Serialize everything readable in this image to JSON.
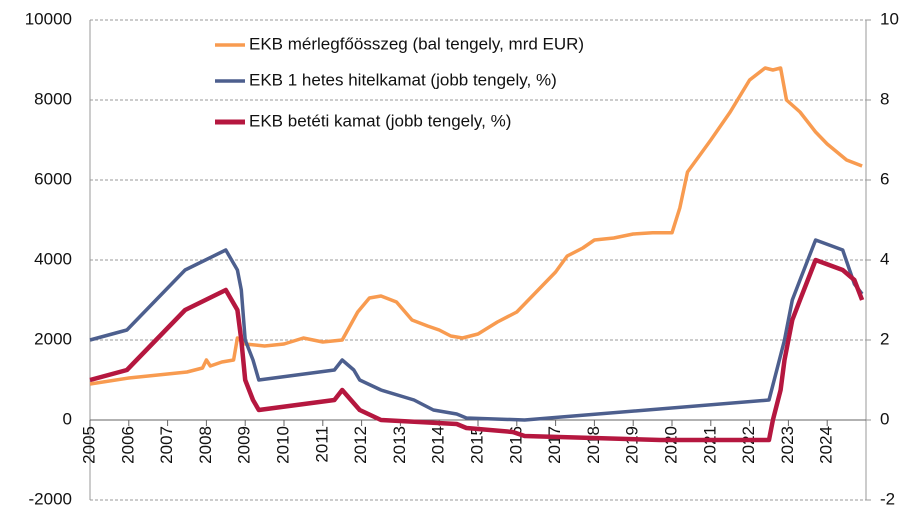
{
  "chart_data": {
    "type": "line",
    "xlim": [
      2005,
      2025
    ],
    "xticks": [
      2005,
      2006,
      2007,
      2008,
      2009,
      2010,
      2011,
      2012,
      2013,
      2014,
      2015,
      2016,
      2017,
      2018,
      2019,
      2020,
      2021,
      2022,
      2023,
      2024
    ],
    "ylim": [
      -2000,
      10000
    ],
    "yticks": [
      -2000,
      0,
      2000,
      4000,
      6000,
      8000,
      10000
    ],
    "y2lim": [
      -2,
      10
    ],
    "y2ticks": [
      -2,
      0,
      2,
      4,
      6,
      8,
      10
    ],
    "grid": true,
    "legend": "top",
    "series": [
      {
        "name": "EKB mérlegfőösszeg (bal tengely, mrd EUR)",
        "color": "#f89b50",
        "axis": "y",
        "x": [
          2005,
          2006,
          2007,
          2007.5,
          2007.9,
          2008,
          2008.1,
          2008.4,
          2008.7,
          2008.8,
          2009,
          2009.5,
          2010,
          2010.5,
          2011,
          2011.5,
          2011.9,
          2012.2,
          2012.5,
          2012.9,
          2013.3,
          2013.7,
          2014,
          2014.3,
          2014.6,
          2015,
          2015.5,
          2016,
          2016.5,
          2017,
          2017.3,
          2017.7,
          2018,
          2018.5,
          2019,
          2019.5,
          2020,
          2020.2,
          2020.4,
          2020.7,
          2021,
          2021.5,
          2022,
          2022.4,
          2022.6,
          2022.8,
          2022.95,
          2023.3,
          2023.7,
          2024,
          2024.5,
          2024.9
        ],
        "values": [
          900,
          1050,
          1150,
          1200,
          1300,
          1500,
          1350,
          1450,
          1500,
          2050,
          1900,
          1850,
          1900,
          2050,
          1950,
          2000,
          2700,
          3050,
          3100,
          2950,
          2500,
          2350,
          2250,
          2100,
          2050,
          2150,
          2450,
          2700,
          3200,
          3700,
          4100,
          4300,
          4500,
          4550,
          4650,
          4680,
          4680,
          5300,
          6200,
          6600,
          7000,
          7700,
          8500,
          8800,
          8750,
          8800,
          8000,
          7700,
          7200,
          6900,
          6500,
          6350
        ]
      },
      {
        "name": "EKB 1 hetes hitelkamat (jobb tengely, %)",
        "color": "#4d5f8e",
        "axis": "y2",
        "x": [
          2005,
          2005.95,
          2006.2,
          2006.45,
          2006.7,
          2006.95,
          2007.2,
          2007.45,
          2008.5,
          2008.8,
          2008.9,
          2009,
          2009.2,
          2009.35,
          2011.3,
          2011.5,
          2011.8,
          2011.95,
          2012.5,
          2013.35,
          2013.85,
          2014.45,
          2014.7,
          2016.2,
          2022.5,
          2022.7,
          2022.9,
          2023.1,
          2023.3,
          2023.5,
          2023.7,
          2024.4,
          2024.7,
          2024.9
        ],
        "values": [
          2,
          2.25,
          2.5,
          2.75,
          3,
          3.25,
          3.5,
          3.75,
          4.25,
          3.75,
          3.25,
          2,
          1.5,
          1,
          1.25,
          1.5,
          1.25,
          1,
          0.75,
          0.5,
          0.25,
          0.15,
          0.05,
          0,
          0.5,
          1.25,
          2,
          3,
          3.5,
          4,
          4.5,
          4.25,
          3.4,
          3.15
        ]
      },
      {
        "name": "EKB betéti kamat (jobb tengely, %)",
        "color": "#b5173f",
        "axis": "y2",
        "x": [
          2005,
          2005.95,
          2006.2,
          2006.45,
          2006.7,
          2006.95,
          2007.2,
          2007.45,
          2008.5,
          2008.8,
          2008.9,
          2009,
          2009.2,
          2009.35,
          2011.3,
          2011.5,
          2011.95,
          2012.5,
          2014.45,
          2014.7,
          2015.9,
          2016.2,
          2019.7,
          2022.5,
          2022.6,
          2022.8,
          2022.9,
          2023.1,
          2023.3,
          2023.5,
          2023.7,
          2024.4,
          2024.7,
          2024.9
        ],
        "values": [
          1,
          1.25,
          1.5,
          1.75,
          2,
          2.25,
          2.5,
          2.75,
          3.25,
          2.75,
          2,
          1,
          0.5,
          0.25,
          0.5,
          0.75,
          0.25,
          0,
          -0.1,
          -0.2,
          -0.3,
          -0.4,
          -0.5,
          -0.5,
          0,
          0.75,
          1.5,
          2.5,
          3,
          3.5,
          4,
          3.75,
          3.5,
          3
        ]
      }
    ]
  }
}
